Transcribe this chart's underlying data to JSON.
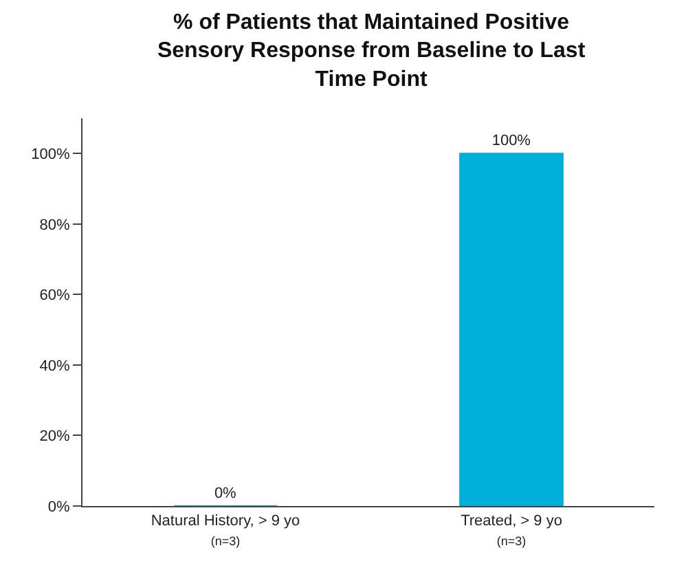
{
  "chart_data": {
    "type": "bar",
    "title": "% of Patients that Maintained Positive\nSensory Response from Baseline to Last\nTime Point",
    "categories": [
      "Natural History, > 9 yo\n(n=3)",
      "Treated, > 9 yo\n(n=3)"
    ],
    "values": [
      0,
      100
    ],
    "color": "#00b0da",
    "value_labels": [
      "0%",
      "100%"
    ],
    "ylim": [
      0,
      110
    ],
    "yticks": [
      {
        "value": 0,
        "label": "0%"
      },
      {
        "value": 20,
        "label": "20%"
      },
      {
        "value": 40,
        "label": "40%"
      },
      {
        "value": 60,
        "label": "60%"
      },
      {
        "value": 80,
        "label": "80%"
      },
      {
        "value": 100,
        "label": "100%"
      }
    ],
    "legend": false
  }
}
